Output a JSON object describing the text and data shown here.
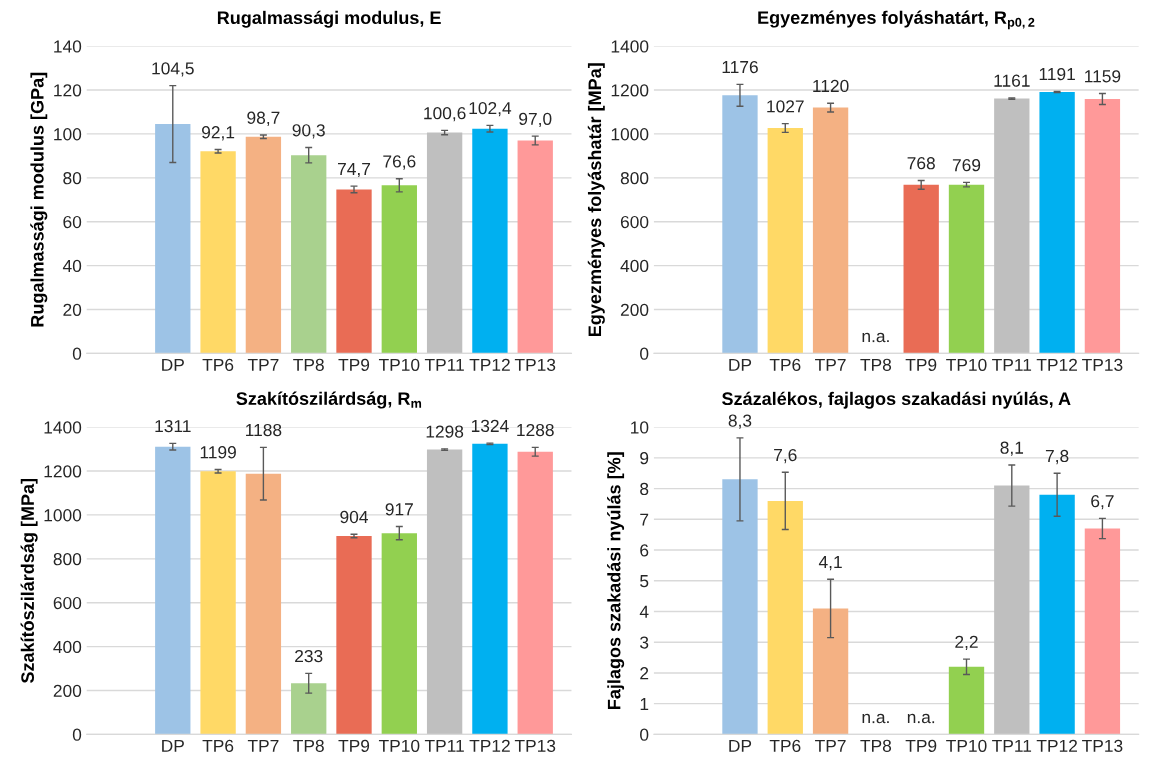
{
  "chart_data": [
    {
      "type": "bar",
      "title": "Rugalmassági modulus, E",
      "ylabel": "Rugalmassági modulus [GPa]",
      "categories": [
        "DP",
        "TP6",
        "TP7",
        "TP8",
        "TP9",
        "TP10",
        "TP11",
        "TP12",
        "TP13"
      ],
      "values": [
        104.5,
        92.1,
        98.7,
        90.3,
        74.7,
        76.6,
        100.6,
        102.4,
        97.0
      ],
      "value_labels": [
        "104,5",
        "92,1",
        "98,7",
        "90,3",
        "74,7",
        "76,6",
        "100,6",
        "102,4",
        "97,0"
      ],
      "errors": [
        17.5,
        0.8,
        0.8,
        3.5,
        1.5,
        3,
        1,
        1.5,
        2
      ],
      "colors": [
        "#9dc3e6",
        "#ffd966",
        "#f4b183",
        "#a9d18e",
        "#e96c55",
        "#92d050",
        "#bfbfbf",
        "#00b0f0",
        "#ff9999"
      ],
      "ylim": [
        0,
        140
      ],
      "yticks": [
        0,
        20,
        40,
        60,
        80,
        100,
        120,
        140
      ],
      "grid": "y"
    },
    {
      "type": "bar",
      "title": "Egyezményes folyáshatárt, R$_{p0,2}$",
      "ylabel": "Egyezményes folyáshatár [MPa]",
      "categories": [
        "DP",
        "TP6",
        "TP7",
        "TP8",
        "TP9",
        "TP10",
        "TP11",
        "TP12",
        "TP13"
      ],
      "values": [
        1176,
        1027,
        1120,
        null,
        768,
        769,
        1161,
        1191,
        1159
      ],
      "value_labels": [
        "1176",
        "1027",
        "1120",
        "n.a.",
        "768",
        "769",
        "1161",
        "1191",
        "1159"
      ],
      "errors": [
        50,
        20,
        20,
        null,
        20,
        10,
        3,
        3,
        25
      ],
      "colors": [
        "#9dc3e6",
        "#ffd966",
        "#f4b183",
        "#a9d18e",
        "#e96c55",
        "#92d050",
        "#bfbfbf",
        "#00b0f0",
        "#ff9999"
      ],
      "ylim": [
        0,
        1400
      ],
      "yticks": [
        0,
        200,
        400,
        600,
        800,
        1000,
        1200,
        1400
      ],
      "grid": "y"
    },
    {
      "type": "bar",
      "title": "Szakítószilárdság, R$_{m}$",
      "ylabel": "Szakítószilárdság [MPa]",
      "categories": [
        "DP",
        "TP6",
        "TP7",
        "TP8",
        "TP9",
        "TP10",
        "TP11",
        "TP12",
        "TP13"
      ],
      "values": [
        1311,
        1199,
        1188,
        233,
        904,
        917,
        1298,
        1324,
        1288
      ],
      "value_labels": [
        "1311",
        "1199",
        "1188",
        "233",
        "904",
        "917",
        "1298",
        "1324",
        "1288"
      ],
      "errors": [
        15,
        8,
        120,
        45,
        8,
        30,
        3,
        3,
        20
      ],
      "colors": [
        "#9dc3e6",
        "#ffd966",
        "#f4b183",
        "#a9d18e",
        "#e96c55",
        "#92d050",
        "#bfbfbf",
        "#00b0f0",
        "#ff9999"
      ],
      "ylim": [
        0,
        1400
      ],
      "yticks": [
        0,
        200,
        400,
        600,
        800,
        1000,
        1200,
        1400
      ],
      "grid": "y"
    },
    {
      "type": "bar",
      "title": "Százalékos, fajlagos szakadási nyúlás, A",
      "ylabel": "Fajlagos szakadási nyúlás [%]",
      "categories": [
        "DP",
        "TP6",
        "TP7",
        "TP8",
        "TP9",
        "TP10",
        "TP11",
        "TP12",
        "TP13"
      ],
      "values": [
        8.3,
        7.6,
        4.1,
        null,
        null,
        2.2,
        8.1,
        7.8,
        6.7
      ],
      "value_labels": [
        "8,3",
        "7,6",
        "4,1",
        "n.a.",
        "n.a.",
        "2,2",
        "8,1",
        "7,8",
        "6,7"
      ],
      "errors": [
        1.35,
        0.93,
        0.95,
        null,
        null,
        0.25,
        0.67,
        0.7,
        0.33
      ],
      "colors": [
        "#9dc3e6",
        "#ffd966",
        "#f4b183",
        "#a9d18e",
        "#e96c55",
        "#92d050",
        "#bfbfbf",
        "#00b0f0",
        "#ff9999"
      ],
      "ylim": [
        0,
        10
      ],
      "yticks": [
        0,
        1,
        2,
        3,
        4,
        5,
        6,
        7,
        8,
        9,
        10
      ],
      "grid": "y"
    }
  ]
}
